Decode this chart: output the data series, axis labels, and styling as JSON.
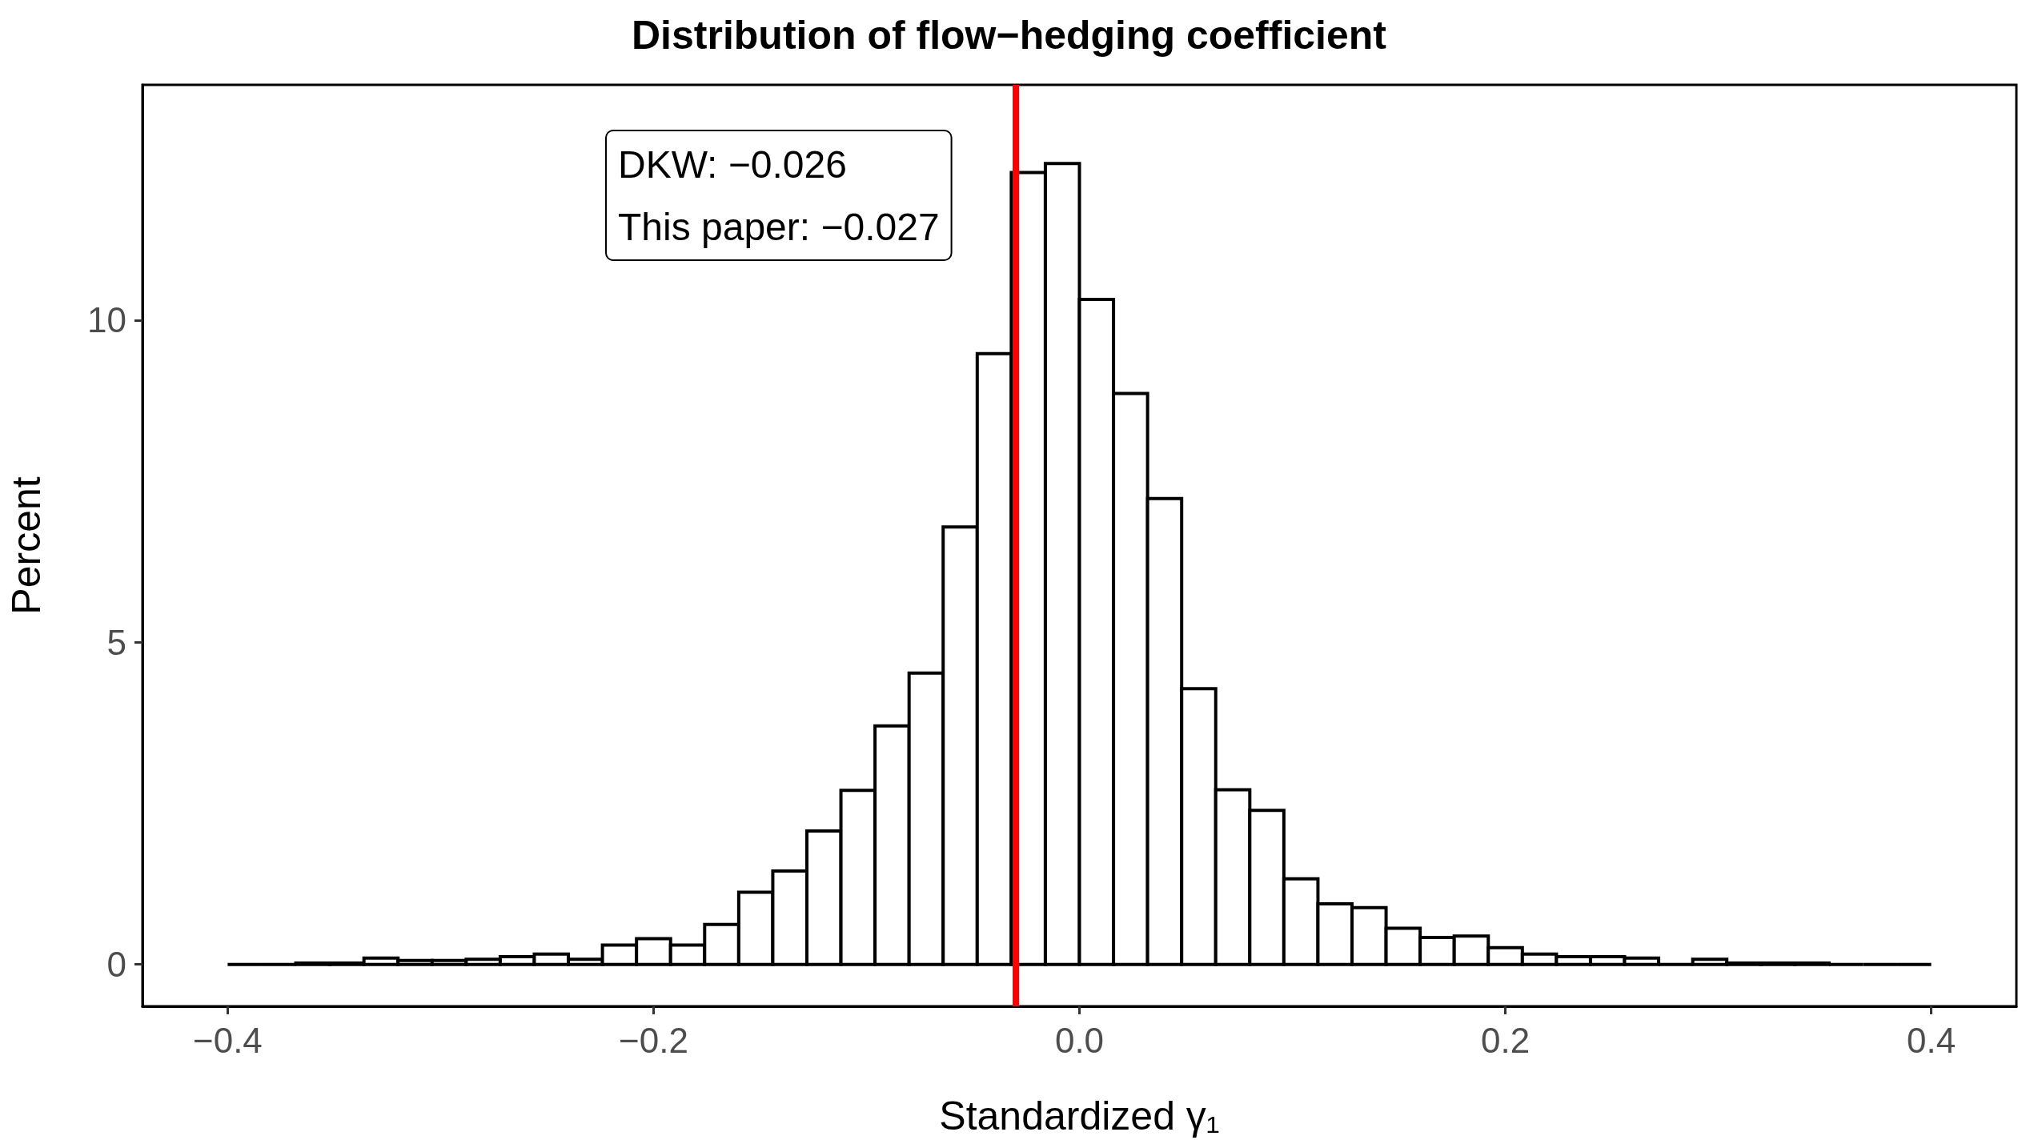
{
  "chart_data": {
    "type": "histogram",
    "title": "Distribution of flow−hedging coefficient",
    "xlabel": "Standardized γ₁",
    "ylabel": "Percent",
    "bins": [
      -0.4,
      -0.384,
      -0.368,
      -0.352,
      -0.336,
      -0.32,
      -0.304,
      -0.288,
      -0.272,
      -0.256,
      -0.24,
      -0.224,
      -0.208,
      -0.192,
      -0.176,
      -0.16,
      -0.144,
      -0.128,
      -0.112,
      -0.096,
      -0.08,
      -0.064,
      -0.048,
      -0.032,
      -0.016,
      0,
      0.016,
      0.032,
      0.048,
      0.064,
      0.08,
      0.096,
      0.112,
      0.128,
      0.144,
      0.16,
      0.176,
      0.192,
      0.208,
      0.224,
      0.24,
      0.256,
      0.272,
      0.288,
      0.304,
      0.32,
      0.336,
      0.352,
      0.368,
      0.384,
      0.4
    ],
    "values": [
      0,
      0,
      0.02,
      0.02,
      0.1,
      0.06,
      0.06,
      0.08,
      0.12,
      0.16,
      0.08,
      0.3,
      0.4,
      0.3,
      0.62,
      1.12,
      1.45,
      2.07,
      2.7,
      3.7,
      4.52,
      6.79,
      9.48,
      12.29,
      12.43,
      10.32,
      8.86,
      7.23,
      4.28,
      2.71,
      2.39,
      1.33,
      0.94,
      0.88,
      0.56,
      0.42,
      0.44,
      0.26,
      0.16,
      0.12,
      0.12,
      0.1,
      0,
      0.08,
      0.02,
      0.02,
      0.02,
      0,
      0,
      0
    ],
    "colors": [
      "#000000",
      "#000000",
      "#ffffff",
      "#ffffff",
      "#ffffff",
      "#ffffff",
      "#ffffff",
      "#ffffff",
      "#ffffff",
      "#ffffff",
      "#ffffff",
      "#ffffff",
      "#ffffff",
      "#ffffff",
      "#ffffff",
      "#ffffff",
      "#ffffff",
      "#ffffff",
      "#ffffff",
      "#ffffff",
      "#ffffff",
      "#ffffff",
      "#ffffff",
      "#ffffff",
      "#ffffff",
      "#ffffff",
      "#ffffff",
      "#ffffff",
      "#ffffff",
      "#ffffff",
      "#ffffff",
      "#ffffff",
      "#ffffff",
      "#ffffff",
      "#ffffff",
      "#ffffff",
      "#ffffff",
      "#ffffff",
      "#ffffff",
      "#ffffff",
      "#ffffff",
      "#ffffff",
      "#000000",
      "#ffffff",
      "#ffffff",
      "#ffffff",
      "#ffffff",
      "#000000",
      "#000000",
      "#000000"
    ],
    "xlim": [
      -0.44,
      0.44
    ],
    "xticks": [
      {
        "value": -0.4,
        "label": "−0.4"
      },
      {
        "value": -0.2,
        "label": "−0.2"
      },
      {
        "value": 0,
        "label": "0.0"
      },
      0.2,
      0.4
    ],
    "ylim": [
      -0.65,
      13.65
    ],
    "yticks": [
      0,
      5,
      10
    ],
    "ref_lines": [
      {
        "axis": "x",
        "value": -0.027,
        "color": "#ff0000"
      }
    ],
    "annotations": [
      "DKW: −0.026",
      "This paper: −0.027"
    ],
    "grid": false
  }
}
